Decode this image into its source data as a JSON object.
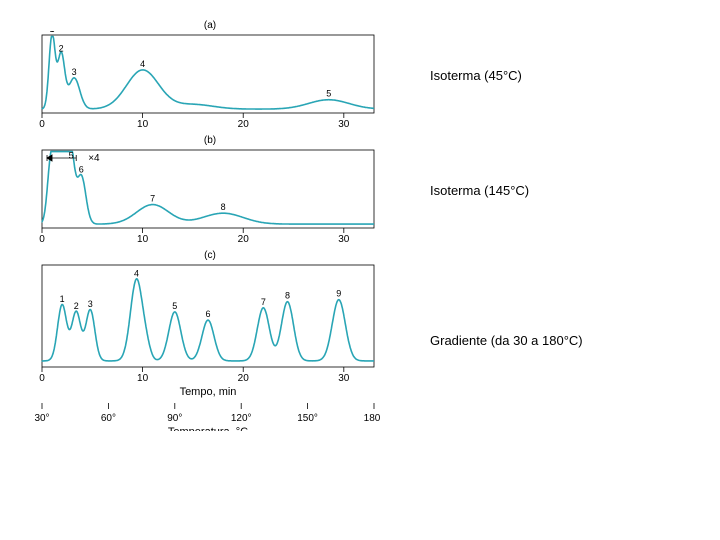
{
  "labels": {
    "a": "Isoterma (45°C)",
    "b": "Isoterma (145°C)",
    "c": "Gradiente (da 30 a 180°C)",
    "x_axis_c": "Tempo, min",
    "temp_axis": "Temperatura, °C"
  },
  "panel_letters": {
    "a": "(a)",
    "b": "(b)",
    "c": "(c)"
  },
  "x4_marker": "×4",
  "colors": {
    "trace": "#29a5b5",
    "frame": "#000000",
    "bg": "#ffffff"
  },
  "style": {
    "trace_width": 1.6,
    "frame_width": 0.8,
    "font_peak": 9,
    "font_tick": 10,
    "font_axis": 11
  },
  "chart_a": {
    "xlim": [
      0,
      33
    ],
    "ylim": [
      0,
      100
    ],
    "ticks": [
      0,
      10,
      20,
      30
    ],
    "peaks": [
      {
        "x": 1.0,
        "h": 95,
        "w": 0.3,
        "label": "1"
      },
      {
        "x": 1.9,
        "h": 70,
        "w": 0.35,
        "label": "2"
      },
      {
        "x": 3.2,
        "h": 40,
        "w": 0.55,
        "label": "3"
      },
      {
        "x": 10.0,
        "h": 50,
        "w": 1.6,
        "label": "4"
      },
      {
        "x": 15.0,
        "h": 6,
        "w": 2.0,
        "label": ""
      },
      {
        "x": 28.5,
        "h": 12,
        "w": 2.0,
        "label": "5"
      }
    ],
    "baseline": 5
  },
  "chart_b": {
    "xlim": [
      0,
      33
    ],
    "ylim": [
      0,
      100
    ],
    "ticks": [
      0,
      10,
      20,
      30
    ],
    "peaks": [
      {
        "x": 0.9,
        "h": 82,
        "w": 0.35,
        "label": ""
      },
      {
        "x": 1.6,
        "h": 92,
        "w": 0.35,
        "label": ""
      },
      {
        "x": 2.3,
        "h": 88,
        "w": 0.35,
        "label": ""
      },
      {
        "x": 2.9,
        "h": 80,
        "w": 0.35,
        "label": "5"
      },
      {
        "x": 3.9,
        "h": 62,
        "w": 0.45,
        "label": "6"
      },
      {
        "x": 11.0,
        "h": 25,
        "w": 1.6,
        "label": "7"
      },
      {
        "x": 18.0,
        "h": 14,
        "w": 2.0,
        "label": "8"
      }
    ],
    "baseline": 5
  },
  "chart_c": {
    "xlim": [
      0,
      33
    ],
    "ylim": [
      0,
      100
    ],
    "ticks": [
      0,
      10,
      20,
      30
    ],
    "temp_ticks": [
      "30°",
      "60°",
      "90°",
      "120°",
      "150°",
      "180°"
    ],
    "temp_tick_x": [
      0,
      6.6,
      13.2,
      19.8,
      26.4,
      33
    ],
    "peaks": [
      {
        "x": 2.0,
        "h": 55,
        "w": 0.45,
        "label": "1"
      },
      {
        "x": 3.4,
        "h": 48,
        "w": 0.45,
        "label": "2"
      },
      {
        "x": 4.8,
        "h": 50,
        "w": 0.45,
        "label": "3"
      },
      {
        "x": 9.4,
        "h": 80,
        "w": 0.6,
        "label": "4"
      },
      {
        "x": 10.4,
        "h": 10,
        "w": 0.4,
        "label": ""
      },
      {
        "x": 13.2,
        "h": 48,
        "w": 0.6,
        "label": "5"
      },
      {
        "x": 16.5,
        "h": 40,
        "w": 0.6,
        "label": "6"
      },
      {
        "x": 22.0,
        "h": 52,
        "w": 0.6,
        "label": "7"
      },
      {
        "x": 24.4,
        "h": 58,
        "w": 0.6,
        "label": "8"
      },
      {
        "x": 29.5,
        "h": 60,
        "w": 0.65,
        "label": "9"
      }
    ],
    "baseline": 6
  }
}
